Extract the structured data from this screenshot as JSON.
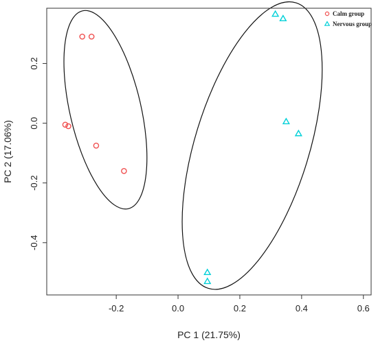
{
  "chart_data": {
    "type": "scatter",
    "title": "",
    "xlabel": "PC 1 (21.75%)",
    "ylabel": "PC 2 (17.06%)",
    "xlim": [
      -0.425,
      0.625
    ],
    "ylim": [
      -0.575,
      0.385
    ],
    "x_ticks": [
      -0.2,
      0.0,
      0.2,
      0.4,
      0.6
    ],
    "x_tick_labels": [
      "-0.2",
      "0.0",
      "0.2",
      "0.4",
      "0.6"
    ],
    "y_ticks": [
      -0.4,
      -0.2,
      0.0,
      0.2
    ],
    "y_tick_labels": [
      "-0.4",
      "-0.2",
      "0.0",
      "0.2"
    ],
    "grid": false,
    "legend_position": "top-right",
    "series": [
      {
        "name": "Calm group",
        "marker": "circle",
        "color": "#f05050",
        "points": [
          {
            "x": -0.31,
            "y": 0.29
          },
          {
            "x": -0.28,
            "y": 0.29
          },
          {
            "x": -0.365,
            "y": -0.005
          },
          {
            "x": -0.355,
            "y": -0.01
          },
          {
            "x": -0.265,
            "y": -0.075
          },
          {
            "x": -0.175,
            "y": -0.16
          }
        ],
        "ellipse": {
          "cx": -0.235,
          "cy": 0.045,
          "rx": 0.115,
          "ry": 0.34,
          "angle": -13
        }
      },
      {
        "name": "Nervous group",
        "marker": "triangle",
        "color": "#00d0d8",
        "points": [
          {
            "x": 0.315,
            "y": 0.365
          },
          {
            "x": 0.34,
            "y": 0.35
          },
          {
            "x": 0.35,
            "y": 0.005
          },
          {
            "x": 0.39,
            "y": -0.035
          },
          {
            "x": 0.095,
            "y": -0.5
          },
          {
            "x": 0.095,
            "y": -0.53
          }
        ],
        "ellipse": {
          "cx": 0.24,
          "cy": -0.075,
          "rx": 0.185,
          "ry": 0.5,
          "angle": 17
        }
      }
    ]
  }
}
